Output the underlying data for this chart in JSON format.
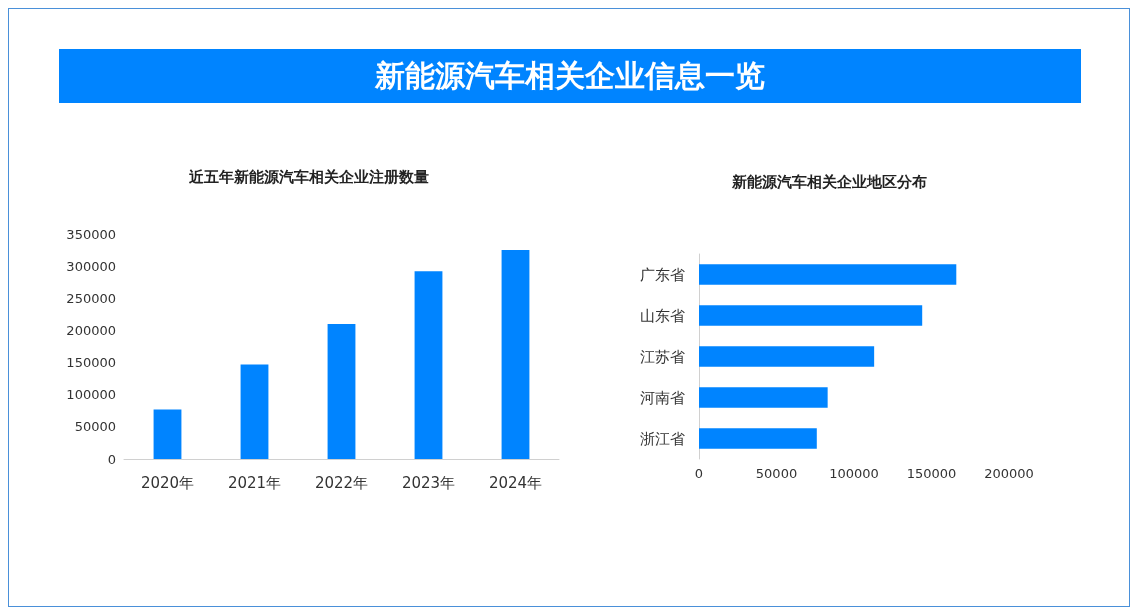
{
  "chart_data": [
    {
      "type": "bar",
      "title": "新能源汽车相关企业信息一览",
      "subtitle": "近五年新能源汽车相关企业注册数量",
      "categories": [
        "2020年",
        "2021年",
        "2022年",
        "2023年",
        "2024年"
      ],
      "values": [
        77000,
        147000,
        210000,
        292000,
        325000
      ],
      "color": "#0084ff",
      "ylim": [
        0,
        350000
      ],
      "yticks": [
        0,
        50000,
        100000,
        150000,
        200000,
        250000,
        300000,
        350000
      ],
      "grid": false
    },
    {
      "type": "bar",
      "orientation": "horizontal",
      "title": "新能源汽车相关企业地区分布",
      "categories": [
        "广东省",
        "山东省",
        "江苏省",
        "河南省",
        "浙江省"
      ],
      "values": [
        166000,
        144000,
        113000,
        83000,
        76000
      ],
      "color": "#0084ff",
      "xlim": [
        0,
        200000
      ],
      "xticks": [
        0,
        50000,
        100000,
        150000,
        200000
      ],
      "grid": false
    }
  ]
}
